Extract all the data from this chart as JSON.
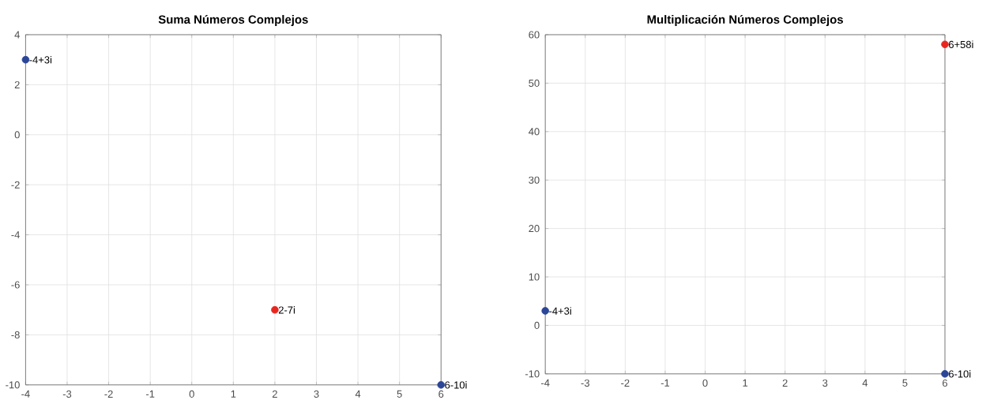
{
  "chart_data": [
    {
      "type": "scatter",
      "title": "Suma Números Complejos",
      "xlim": [
        -4,
        6
      ],
      "ylim": [
        -10,
        4
      ],
      "xticks": [
        -4,
        -3,
        -2,
        -1,
        0,
        1,
        2,
        3,
        4,
        5,
        6
      ],
      "yticks": [
        -10,
        -8,
        -6,
        -4,
        -2,
        0,
        2,
        4
      ],
      "grid": true,
      "marker": "circle",
      "series": [
        {
          "color": "#2b4597",
          "x": [
            -4,
            6
          ],
          "values": [
            3,
            -10
          ]
        },
        {
          "color": "#e8261f",
          "x": [
            2
          ],
          "values": [
            -7
          ]
        }
      ],
      "annotations": [
        {
          "text": "-4+3i",
          "x": -4,
          "y": 3
        },
        {
          "text": "6-10i",
          "x": 6,
          "y": -10
        },
        {
          "text": "2-7i",
          "x": 2,
          "y": -7
        }
      ]
    },
    {
      "type": "scatter",
      "title": "Multiplicación Números Complejos",
      "xlim": [
        -4,
        6
      ],
      "ylim": [
        -10,
        60
      ],
      "xticks": [
        -4,
        -3,
        -2,
        -1,
        0,
        1,
        2,
        3,
        4,
        5,
        6
      ],
      "yticks": [
        -10,
        0,
        10,
        20,
        30,
        40,
        50,
        60
      ],
      "grid": true,
      "marker": "circle",
      "series": [
        {
          "color": "#2b4597",
          "x": [
            -4,
            6
          ],
          "values": [
            3,
            -10
          ]
        },
        {
          "color": "#e8261f",
          "x": [
            6
          ],
          "values": [
            58
          ]
        }
      ],
      "annotations": [
        {
          "text": "-4+3i",
          "x": -4,
          "y": 3
        },
        {
          "text": "6-10i",
          "x": 6,
          "y": -10
        },
        {
          "text": "6+58i",
          "x": 6,
          "y": 58
        }
      ]
    }
  ]
}
